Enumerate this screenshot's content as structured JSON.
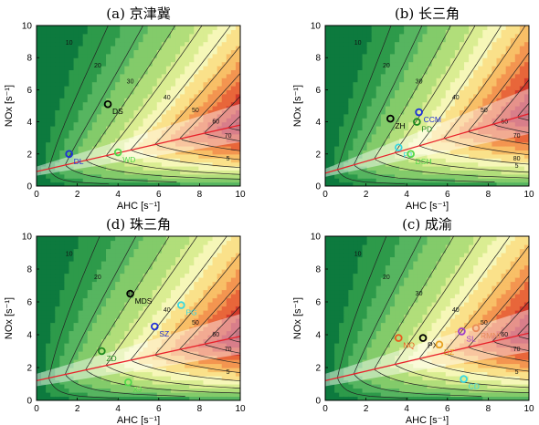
{
  "chart_data": [
    {
      "type": "heatmap",
      "title": "(a)  京津冀",
      "xlabel": "AHC [s⁻¹]",
      "ylabel": "NOx [s⁻¹]",
      "xlim": [
        0,
        10
      ],
      "ylim": [
        0,
        10
      ],
      "xticks": [
        "0",
        "2",
        "4",
        "6",
        "8",
        "10"
      ],
      "yticks": [
        "0",
        "2",
        "4",
        "6",
        "8",
        "10"
      ],
      "ridge": [
        [
          0,
          0.9
        ],
        [
          10,
          3.8
        ]
      ],
      "contour_labels": [
        "10",
        "20",
        "30",
        "40",
        "50",
        "60",
        "70",
        "5"
      ],
      "sites": [
        {
          "name": "DS",
          "x": 3.5,
          "y": 5.1,
          "color": "#000000"
        },
        {
          "name": "DL",
          "x": 1.6,
          "y": 2.0,
          "color": "#1e2fd8"
        },
        {
          "name": "WD",
          "x": 4.0,
          "y": 2.1,
          "color": "#52d84a"
        }
      ]
    },
    {
      "type": "heatmap",
      "title": "(b)  长三角",
      "xlabel": "AHC [s⁻¹]",
      "ylabel": "NOx [s⁻¹]",
      "xlim": [
        0,
        10
      ],
      "ylim": [
        0,
        10
      ],
      "xticks": [
        "0",
        "2",
        "4",
        "6",
        "8",
        "10"
      ],
      "yticks": [
        "0",
        "2",
        "4",
        "6",
        "8",
        "10"
      ],
      "ridge": [
        [
          0,
          0.8
        ],
        [
          10,
          4.5
        ]
      ],
      "contour_labels": [
        "10",
        "20",
        "30",
        "40",
        "50",
        "60",
        "70",
        "80",
        "5"
      ],
      "sites": [
        {
          "name": "CCM",
          "x": 4.6,
          "y": 4.6,
          "color": "#1e2fd8"
        },
        {
          "name": "ZH",
          "x": 3.2,
          "y": 4.2,
          "color": "#000000"
        },
        {
          "name": "PD",
          "x": 4.5,
          "y": 4.0,
          "color": "#1e8a1e"
        },
        {
          "name": "PJ",
          "x": 3.6,
          "y": 2.4,
          "color": "#3ad8e0"
        },
        {
          "name": "DSH",
          "x": 4.2,
          "y": 2.0,
          "color": "#52d84a"
        }
      ]
    },
    {
      "type": "heatmap",
      "title": "(d)  珠三角",
      "xlabel": "AHC [s⁻¹]",
      "ylabel": "NOx [s⁻¹]",
      "xlim": [
        0,
        10
      ],
      "ylim": [
        0,
        10
      ],
      "xticks": [
        "0",
        "2",
        "4",
        "6",
        "8",
        "10"
      ],
      "yticks": [
        "0",
        "2",
        "4",
        "6",
        "8",
        "10"
      ],
      "ridge": [
        [
          0,
          1.2
        ],
        [
          10,
          3.9
        ]
      ],
      "contour_labels": [
        "10",
        "20",
        "30",
        "40",
        "50",
        "60",
        "70",
        "5"
      ],
      "sites": [
        {
          "name": "MDS",
          "x": 4.6,
          "y": 6.5,
          "color": "#000000"
        },
        {
          "name": "PG",
          "x": 7.1,
          "y": 5.8,
          "color": "#3ad8e0"
        },
        {
          "name": "SZ",
          "x": 5.8,
          "y": 4.5,
          "color": "#1e2fd8"
        },
        {
          "name": "ZD",
          "x": 3.2,
          "y": 3.0,
          "color": "#1e8a1e"
        },
        {
          "name": "XJ",
          "x": 4.5,
          "y": 1.1,
          "color": "#52d84a"
        }
      ]
    },
    {
      "type": "heatmap",
      "title": "(c)  成渝",
      "xlabel": "AHC [s⁻¹]",
      "ylabel": "NOx [s⁻¹]",
      "xlim": [
        0,
        10
      ],
      "ylim": [
        0,
        10
      ],
      "xticks": [
        "0",
        "2",
        "4",
        "6",
        "8",
        "10"
      ],
      "yticks": [
        "0",
        "2",
        "4",
        "6",
        "8",
        "10"
      ],
      "ridge": [
        [
          0,
          1.2
        ],
        [
          10,
          4.1
        ]
      ],
      "contour_labels": [
        "10",
        "20",
        "30",
        "40",
        "50",
        "60",
        "70",
        "5"
      ],
      "sites": [
        {
          "name": "RMNL",
          "x": 7.4,
          "y": 4.4,
          "color": "#e88a5a"
        },
        {
          "name": "SL",
          "x": 6.7,
          "y": 4.2,
          "color": "#a040c8"
        },
        {
          "name": "NQ",
          "x": 3.6,
          "y": 3.8,
          "color": "#e85a1e"
        },
        {
          "name": "PX",
          "x": 4.8,
          "y": 3.8,
          "color": "#000000"
        },
        {
          "name": "DZ",
          "x": 5.6,
          "y": 3.4,
          "color": "#e8a020"
        },
        {
          "name": "CD",
          "x": 6.8,
          "y": 1.3,
          "color": "#3ad8e0"
        }
      ]
    }
  ]
}
